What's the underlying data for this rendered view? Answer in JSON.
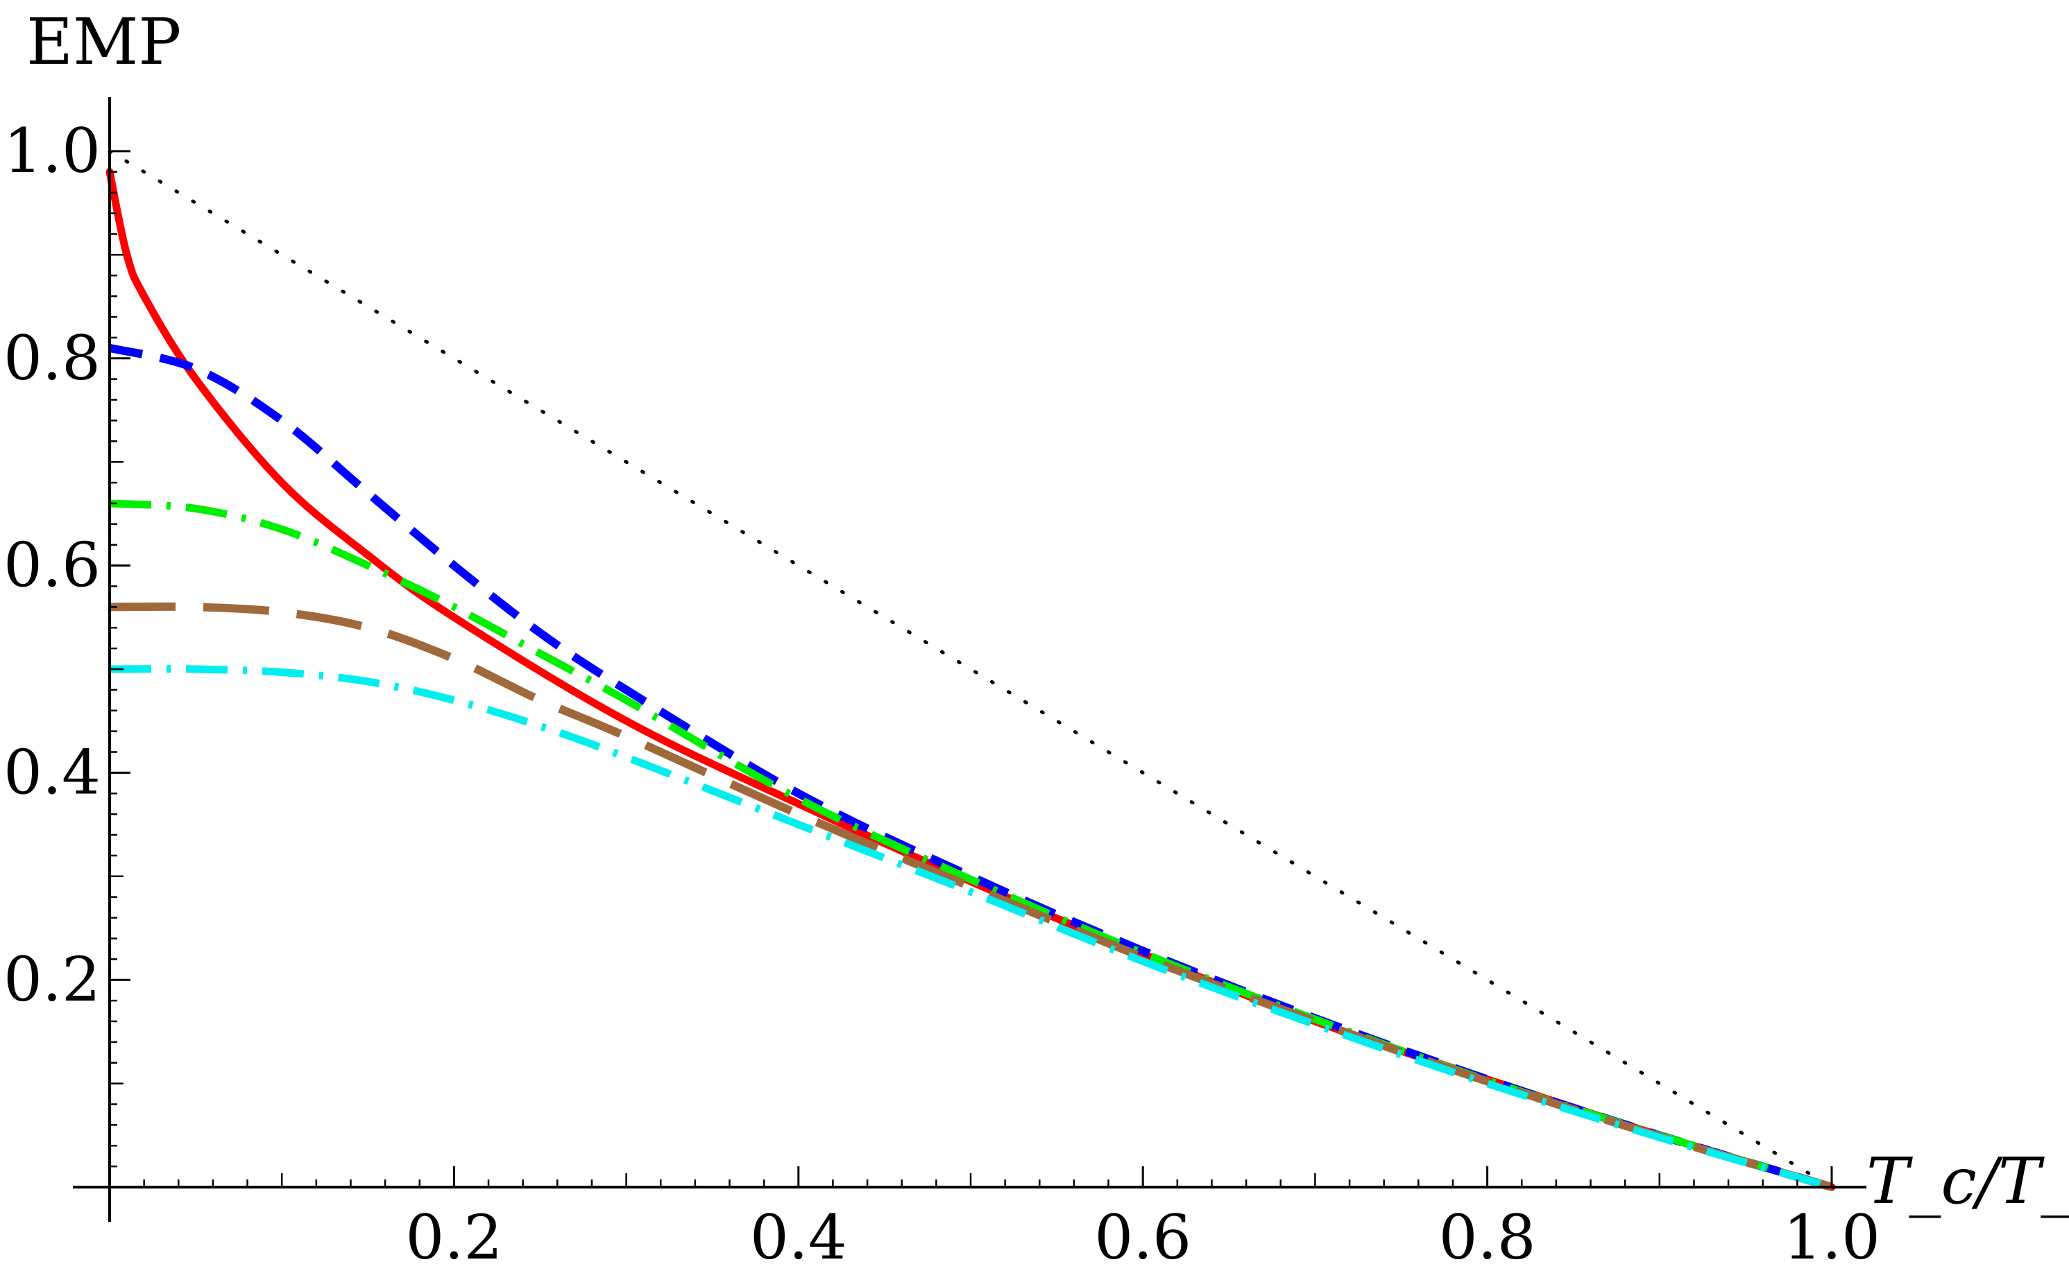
{
  "chart_data": {
    "type": "line",
    "title": "",
    "xlabel": "T_c/T_h",
    "ylabel": "EMP",
    "xlim": [
      0,
      1.0
    ],
    "ylim": [
      0,
      1.0
    ],
    "x_ticks": [
      {
        "value": 0.2,
        "label": "0.2"
      },
      {
        "value": 0.4,
        "label": "0.4"
      },
      {
        "value": 0.6,
        "label": "0.6"
      },
      {
        "value": 0.8,
        "label": "0.8"
      },
      {
        "value": 1.0,
        "label": "1.0"
      }
    ],
    "y_ticks": [
      {
        "value": 0.2,
        "label": "0.2"
      },
      {
        "value": 0.4,
        "label": "0.4"
      },
      {
        "value": 0.6,
        "label": "0.6"
      },
      {
        "value": 0.8,
        "label": "0.8"
      },
      {
        "value": 1.0,
        "label": "1.0"
      }
    ],
    "grid": false,
    "legend": "none",
    "series": [
      {
        "color": "#000000",
        "style": "dotted",
        "x": [
          0,
          1.0
        ],
        "y": [
          1.0,
          0
        ]
      },
      {
        "color": "#ff0000",
        "style": "solid",
        "x": [
          0,
          0.01,
          0.02,
          0.05,
          0.1,
          0.15,
          0.2,
          0.3,
          0.4,
          0.5,
          0.6,
          0.7,
          0.8,
          0.9,
          1.0
        ],
        "y": [
          0.98,
          0.9,
          0.86,
          0.78,
          0.68,
          0.61,
          0.55,
          0.45,
          0.37,
          0.295,
          0.225,
          0.16,
          0.104,
          0.05,
          0
        ]
      },
      {
        "color": "#0000ff",
        "style": "dashed",
        "x": [
          0,
          0.05,
          0.1,
          0.15,
          0.2,
          0.25,
          0.3,
          0.4,
          0.5,
          0.6,
          0.7,
          0.8,
          0.9,
          1.0
        ],
        "y": [
          0.81,
          0.79,
          0.74,
          0.67,
          0.6,
          0.535,
          0.48,
          0.38,
          0.3,
          0.228,
          0.163,
          0.104,
          0.05,
          0
        ]
      },
      {
        "color": "#00ee00",
        "style": "dash-dot",
        "x": [
          0,
          0.05,
          0.1,
          0.15,
          0.2,
          0.25,
          0.3,
          0.4,
          0.5,
          0.6,
          0.7,
          0.8,
          0.9,
          1.0
        ],
        "y": [
          0.66,
          0.655,
          0.635,
          0.6,
          0.56,
          0.515,
          0.47,
          0.375,
          0.297,
          0.226,
          0.162,
          0.103,
          0.05,
          0
        ]
      },
      {
        "color": "#a0693c",
        "style": "long-dash",
        "x": [
          0,
          0.05,
          0.1,
          0.15,
          0.2,
          0.25,
          0.3,
          0.4,
          0.5,
          0.6,
          0.7,
          0.8,
          0.9,
          1.0
        ],
        "y": [
          0.56,
          0.56,
          0.555,
          0.54,
          0.51,
          0.47,
          0.435,
          0.36,
          0.29,
          0.222,
          0.16,
          0.102,
          0.049,
          0
        ]
      },
      {
        "color": "#00eeee",
        "style": "dash-dot",
        "x": [
          0,
          0.05,
          0.1,
          0.15,
          0.2,
          0.25,
          0.3,
          0.4,
          0.5,
          0.6,
          0.7,
          0.8,
          0.9,
          1.0
        ],
        "y": [
          0.5,
          0.5,
          0.497,
          0.488,
          0.47,
          0.445,
          0.415,
          0.35,
          0.285,
          0.218,
          0.157,
          0.1,
          0.048,
          0
        ]
      }
    ]
  }
}
